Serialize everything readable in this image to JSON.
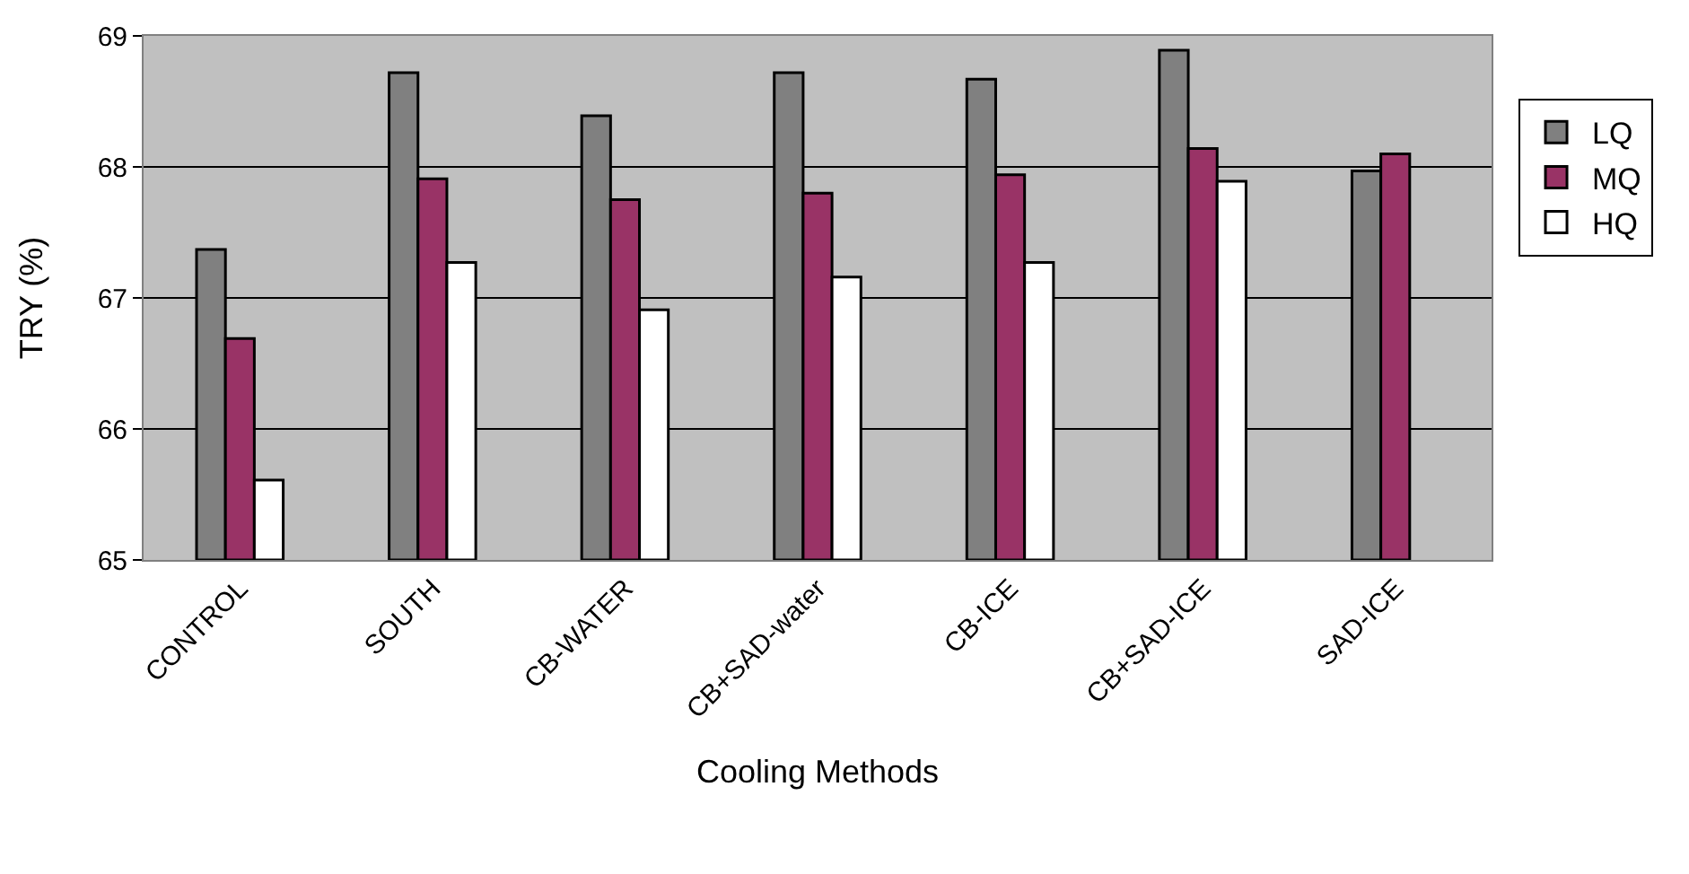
{
  "chart_data": {
    "type": "bar",
    "xlabel": "Cooling Methods",
    "ylabel": "TRY (%)",
    "categories": [
      "CONTROL",
      "SOUTH",
      "CB-WATER",
      "CB+SAD-water",
      "CB-ICE",
      "CB+SAD-ICE",
      "SAD-ICE"
    ],
    "series": [
      {
        "name": "LQ",
        "color": "#808080",
        "values": [
          67.37,
          68.72,
          68.39,
          68.72,
          68.67,
          68.89,
          67.97
        ]
      },
      {
        "name": "MQ",
        "color": "#993366",
        "values": [
          66.69,
          67.91,
          67.75,
          67.8,
          67.94,
          68.14,
          68.1
        ]
      },
      {
        "name": "HQ",
        "color": "#ffffff",
        "values": [
          65.61,
          67.27,
          66.91,
          67.16,
          67.27,
          67.89,
          null
        ]
      }
    ],
    "ylim": [
      65,
      69
    ],
    "yticks": [
      65,
      66,
      67,
      68,
      69
    ],
    "grid": "y",
    "legend": "top right"
  }
}
